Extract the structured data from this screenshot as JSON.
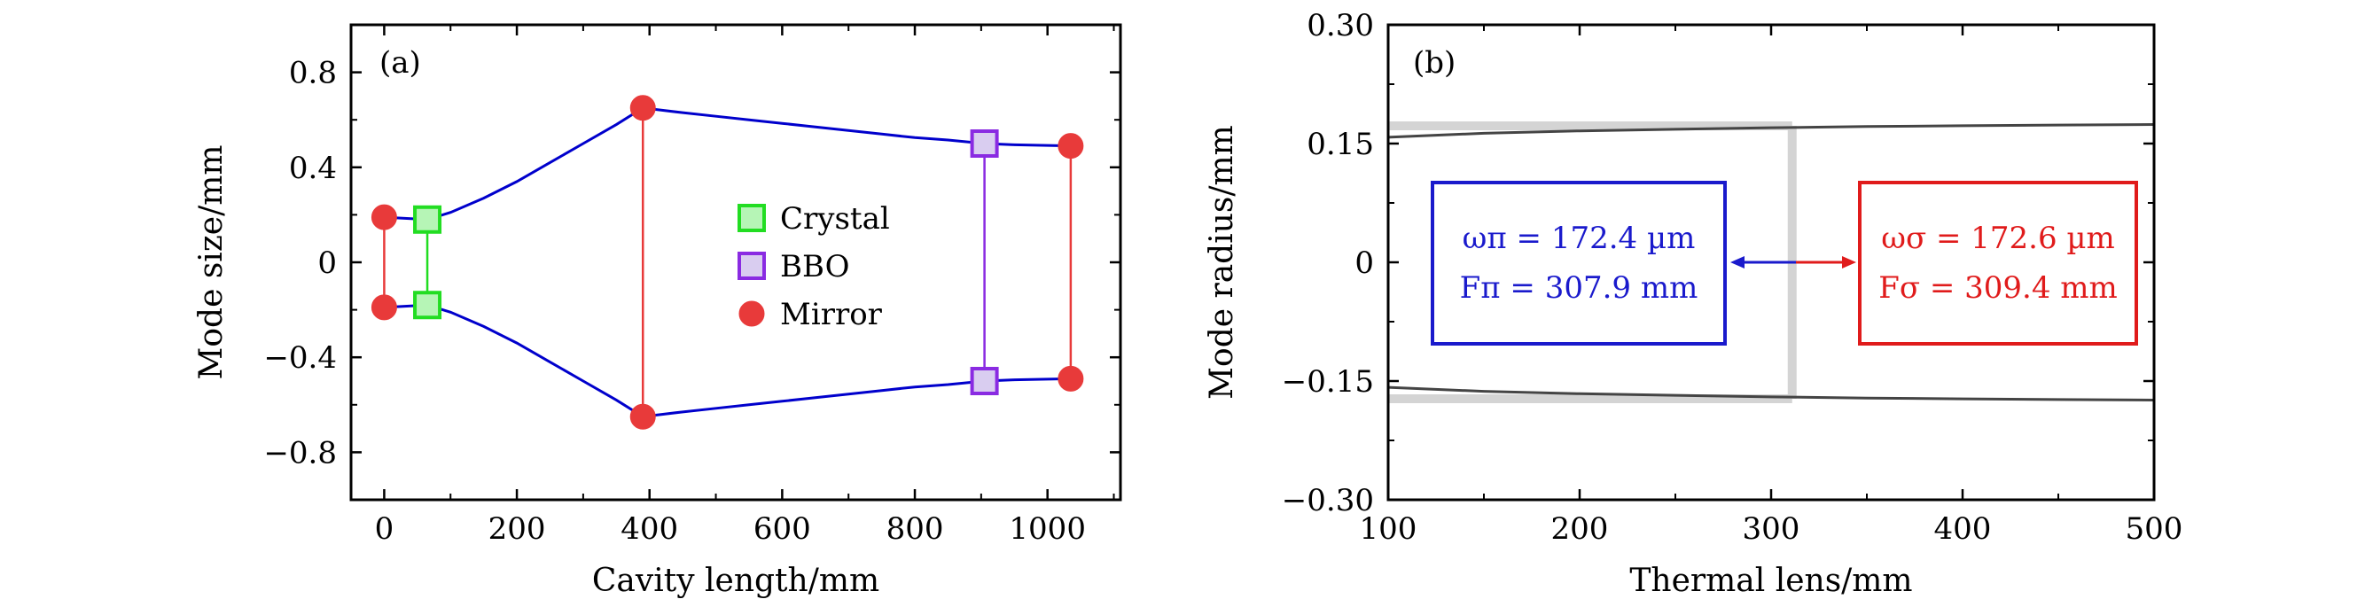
{
  "chart_data": [
    {
      "type": "line",
      "panel_label": "(a)",
      "xlabel": "Cavity length/mm",
      "ylabel": "Mode size/mm",
      "xlim": [
        -50,
        1110
      ],
      "ylim": [
        -1.0,
        1.0
      ],
      "xticks": [
        0,
        200,
        400,
        600,
        800,
        1000
      ],
      "xtick_labels": [
        "0",
        "200",
        "400",
        "600",
        "800",
        "1000"
      ],
      "yticks": [
        -0.8,
        -0.4,
        0,
        0.4,
        0.8
      ],
      "ytick_labels": [
        "−0.8",
        "−0.4",
        "0",
        "0.4",
        "0.8"
      ],
      "grid": false,
      "legend_position": "center",
      "series": [
        {
          "name": "mode",
          "color": "#0000cc",
          "x": [
            0,
            65,
            100,
            150,
            200,
            250,
            300,
            350,
            390,
            450,
            500,
            550,
            600,
            650,
            700,
            750,
            800,
            850,
            905,
            950,
            1000,
            1035
          ],
          "y": [
            0.19,
            0.18,
            0.21,
            0.27,
            0.34,
            0.42,
            0.5,
            0.58,
            0.65,
            0.63,
            0.615,
            0.6,
            0.585,
            0.57,
            0.555,
            0.54,
            0.525,
            0.515,
            0.5,
            0.495,
            0.492,
            0.49
          ]
        }
      ],
      "markers": [
        {
          "name": "Mirror",
          "x": 0,
          "y": 0.19
        },
        {
          "name": "Mirror",
          "x": 0,
          "y": -0.19
        },
        {
          "name": "Crystal",
          "x": 65,
          "y": 0.18
        },
        {
          "name": "Crystal",
          "x": 65,
          "y": -0.18
        },
        {
          "name": "Mirror",
          "x": 390,
          "y": 0.65
        },
        {
          "name": "Mirror",
          "x": 390,
          "y": -0.65
        },
        {
          "name": "BBO",
          "x": 905,
          "y": 0.5
        },
        {
          "name": "BBO",
          "x": 905,
          "y": -0.5
        },
        {
          "name": "Mirror",
          "x": 1035,
          "y": 0.49
        },
        {
          "name": "Mirror",
          "x": 1035,
          "y": -0.49
        }
      ],
      "legend": [
        {
          "label": "Crystal",
          "color": "#22dd22",
          "fill": "#b6f5b6",
          "marker": "square"
        },
        {
          "label": "BBO",
          "color": "#8a2be2",
          "fill": "#d9cdf0",
          "marker": "square"
        },
        {
          "label": "Mirror",
          "color": "#e83a3a",
          "fill": "#e83a3a",
          "marker": "circle"
        }
      ]
    },
    {
      "type": "line",
      "panel_label": "(b)",
      "xlabel": "Thermal lens/mm",
      "ylabel": "Mode radius/mm",
      "xlim": [
        100,
        500
      ],
      "ylim": [
        -0.3,
        0.3
      ],
      "xticks": [
        100,
        200,
        300,
        400,
        500
      ],
      "xtick_labels": [
        "100",
        "200",
        "300",
        "400",
        "500"
      ],
      "yticks": [
        -0.3,
        -0.15,
        0,
        0.15,
        0.3
      ],
      "ytick_labels": [
        "−0.30",
        "−0.15",
        "0",
        "0.15",
        "0.30"
      ],
      "grid": false,
      "series": [
        {
          "name": "upper",
          "color": "#444444",
          "x": [
            100,
            150,
            200,
            250,
            300,
            350,
            400,
            450,
            500
          ],
          "y": [
            0.158,
            0.163,
            0.166,
            0.168,
            0.17,
            0.1715,
            0.1725,
            0.1733,
            0.174
          ]
        },
        {
          "name": "lower",
          "color": "#444444",
          "x": [
            100,
            150,
            200,
            250,
            300,
            350,
            400,
            450,
            500
          ],
          "y": [
            -0.158,
            -0.163,
            -0.166,
            -0.168,
            -0.17,
            -0.1715,
            -0.1725,
            -0.1733,
            -0.174
          ]
        }
      ],
      "guides": {
        "color": "#d4d4d4",
        "vertical_x": 311,
        "horizontal_y": [
          0.1724,
          -0.1724
        ]
      },
      "annotations": {
        "blue_box": {
          "color": "#1a1acc",
          "line1": "ωπ = 172.4 µm",
          "line2": "Fπ = 307.9 mm"
        },
        "red_box": {
          "color": "#e01b1b",
          "line1": "ωσ = 172.6 µm",
          "line2": "Fσ = 309.4 mm"
        }
      }
    }
  ]
}
